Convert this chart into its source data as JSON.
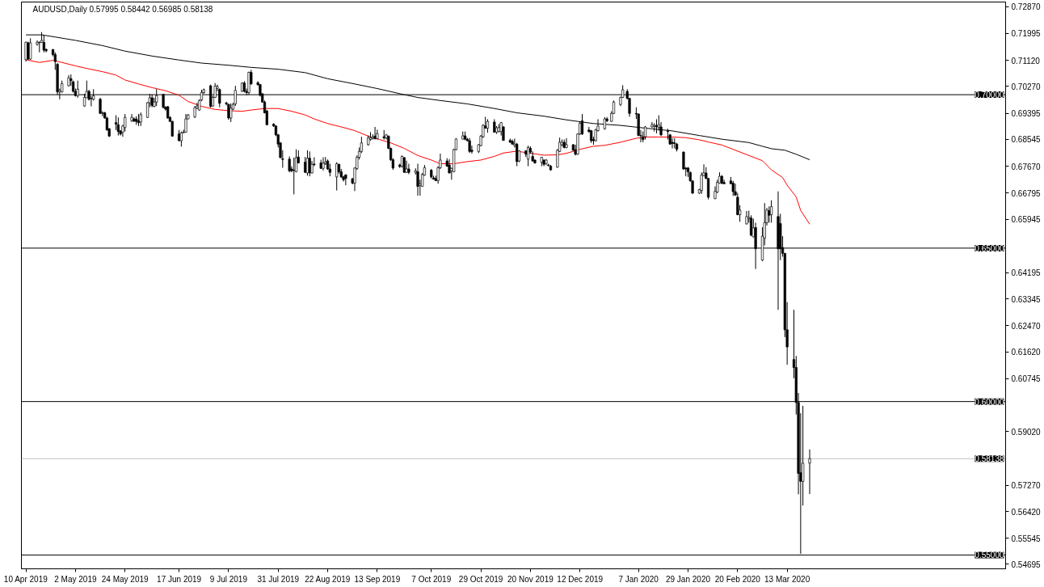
{
  "chart_data": {
    "type": "candlestick",
    "title": "AUDUSD,Daily  0.57995 0.58442 0.56985 0.58138",
    "color": "#000000",
    "x": [
      "2019-04-10",
      "2019-04-11",
      "2019-04-12",
      "2019-04-15",
      "2019-04-16",
      "2019-04-17",
      "2019-04-18",
      "2019-04-19",
      "2019-04-22",
      "2019-04-23",
      "2019-04-24",
      "2019-04-25",
      "2019-04-26",
      "2019-04-29",
      "2019-04-30",
      "2019-05-01",
      "2019-05-02",
      "2019-05-03",
      "2019-05-06",
      "2019-05-07",
      "2019-05-08",
      "2019-05-09",
      "2019-05-10",
      "2019-05-13",
      "2019-05-14",
      "2019-05-15",
      "2019-05-16",
      "2019-05-17",
      "2019-05-20",
      "2019-05-21",
      "2019-05-22",
      "2019-05-23",
      "2019-05-24",
      "2019-05-27",
      "2019-05-28",
      "2019-05-29",
      "2019-05-30",
      "2019-05-31",
      "2019-06-03",
      "2019-06-04",
      "2019-06-05",
      "2019-06-06",
      "2019-06-07",
      "2019-06-10",
      "2019-06-11",
      "2019-06-12",
      "2019-06-13",
      "2019-06-14",
      "2019-06-17",
      "2019-06-18",
      "2019-06-19",
      "2019-06-20",
      "2019-06-21",
      "2019-06-24",
      "2019-06-25",
      "2019-06-26",
      "2019-06-27",
      "2019-06-28",
      "2019-07-01",
      "2019-07-02",
      "2019-07-03",
      "2019-07-04",
      "2019-07-05",
      "2019-07-08",
      "2019-07-09",
      "2019-07-10",
      "2019-07-11",
      "2019-07-12",
      "2019-07-15",
      "2019-07-16",
      "2019-07-17",
      "2019-07-18",
      "2019-07-19",
      "2019-07-22",
      "2019-07-23",
      "2019-07-24",
      "2019-07-25",
      "2019-07-26",
      "2019-07-29",
      "2019-07-30",
      "2019-07-31",
      "2019-08-01",
      "2019-08-02",
      "2019-08-05",
      "2019-08-06",
      "2019-08-07",
      "2019-08-08",
      "2019-08-09",
      "2019-08-12",
      "2019-08-13",
      "2019-08-14",
      "2019-08-15",
      "2019-08-16",
      "2019-08-19",
      "2019-08-20",
      "2019-08-21",
      "2019-08-22",
      "2019-08-23",
      "2019-08-26",
      "2019-08-27",
      "2019-08-28",
      "2019-08-29",
      "2019-08-30",
      "2019-09-02",
      "2019-09-03",
      "2019-09-04",
      "2019-09-05",
      "2019-09-06",
      "2019-09-09",
      "2019-09-10",
      "2019-09-11",
      "2019-09-12",
      "2019-09-13",
      "2019-09-16",
      "2019-09-17",
      "2019-09-18",
      "2019-09-19",
      "2019-09-20",
      "2019-09-23",
      "2019-09-24",
      "2019-09-25",
      "2019-09-26",
      "2019-09-27",
      "2019-09-30",
      "2019-10-01",
      "2019-10-02",
      "2019-10-03",
      "2019-10-04",
      "2019-10-07",
      "2019-10-08",
      "2019-10-09",
      "2019-10-10",
      "2019-10-11",
      "2019-10-14",
      "2019-10-15",
      "2019-10-16",
      "2019-10-17",
      "2019-10-18",
      "2019-10-21",
      "2019-10-22",
      "2019-10-23",
      "2019-10-24",
      "2019-10-25",
      "2019-10-28",
      "2019-10-29",
      "2019-10-30",
      "2019-10-31",
      "2019-11-01",
      "2019-11-04",
      "2019-11-05",
      "2019-11-06",
      "2019-11-07",
      "2019-11-08",
      "2019-11-11",
      "2019-11-12",
      "2019-11-13",
      "2019-11-14",
      "2019-11-15",
      "2019-11-18",
      "2019-11-19",
      "2019-11-20",
      "2019-11-21",
      "2019-11-22",
      "2019-11-25",
      "2019-11-26",
      "2019-11-27",
      "2019-11-28",
      "2019-11-29",
      "2019-12-02",
      "2019-12-03",
      "2019-12-04",
      "2019-12-05",
      "2019-12-06",
      "2019-12-09",
      "2019-12-10",
      "2019-12-11",
      "2019-12-12",
      "2019-12-13",
      "2019-12-16",
      "2019-12-17",
      "2019-12-18",
      "2019-12-19",
      "2019-12-20",
      "2019-12-23",
      "2019-12-24",
      "2019-12-26",
      "2019-12-27",
      "2019-12-30",
      "2019-12-31",
      "2020-01-02",
      "2020-01-03",
      "2020-01-06",
      "2020-01-07",
      "2020-01-08",
      "2020-01-09",
      "2020-01-10",
      "2020-01-13",
      "2020-01-14",
      "2020-01-15",
      "2020-01-16",
      "2020-01-17",
      "2020-01-20",
      "2020-01-21",
      "2020-01-22",
      "2020-01-23",
      "2020-01-24",
      "2020-01-27",
      "2020-01-28",
      "2020-01-29",
      "2020-01-30",
      "2020-01-31",
      "2020-02-03",
      "2020-02-04",
      "2020-02-05",
      "2020-02-06",
      "2020-02-07",
      "2020-02-10",
      "2020-02-11",
      "2020-02-12",
      "2020-02-13",
      "2020-02-14",
      "2020-02-17",
      "2020-02-18",
      "2020-02-19",
      "2020-02-20",
      "2020-02-21",
      "2020-02-24",
      "2020-02-25",
      "2020-02-26",
      "2020-02-27",
      "2020-02-28",
      "2020-03-02",
      "2020-03-03",
      "2020-03-04",
      "2020-03-05",
      "2020-03-06",
      "2020-03-09",
      "2020-03-10",
      "2020-03-11",
      "2020-03-12",
      "2020-03-13",
      "2020-03-16",
      "2020-03-17",
      "2020-03-18",
      "2020-03-19",
      "2020-03-20",
      "2020-03-23"
    ],
    "ohlc": [
      [
        0.7114,
        0.7173,
        0.7108,
        0.7171
      ],
      [
        0.7169,
        0.7173,
        0.7114,
        0.7116
      ],
      [
        0.7116,
        0.7184,
        0.7114,
        0.7169
      ],
      [
        0.7164,
        0.7177,
        0.716,
        0.7171
      ],
      [
        0.7171,
        0.7173,
        0.7138,
        0.717
      ],
      [
        0.717,
        0.7204,
        0.7169,
        0.7177
      ],
      [
        0.717,
        0.7195,
        0.7138,
        0.7145
      ],
      [
        0.7147,
        0.7151,
        0.7138,
        0.7143
      ],
      [
        0.7147,
        0.7149,
        0.7125,
        0.7131
      ],
      [
        0.7131,
        0.7138,
        0.7081,
        0.7108
      ],
      [
        0.7099,
        0.7103,
        0.7,
        0.7009
      ],
      [
        0.7009,
        0.702,
        0.6985,
        0.7014
      ],
      [
        0.7009,
        0.7046,
        0.7007,
        0.7036
      ],
      [
        0.7029,
        0.7064,
        0.7027,
        0.7055
      ],
      [
        0.7052,
        0.7066,
        0.7029,
        0.7046
      ],
      [
        0.7042,
        0.7046,
        0.7007,
        0.7011
      ],
      [
        0.7011,
        0.702,
        0.6994,
        0.6997
      ],
      [
        0.6997,
        0.7046,
        0.699,
        0.7018
      ],
      [
        0.6963,
        0.7003,
        0.6961,
        0.6991
      ],
      [
        0.699,
        0.7046,
        0.699,
        0.7011
      ],
      [
        0.7011,
        0.7016,
        0.6981,
        0.6985
      ],
      [
        0.6988,
        0.6996,
        0.6962,
        0.6987
      ],
      [
        0.6985,
        0.7018,
        0.6981,
        0.6996
      ],
      [
        0.6985,
        0.699,
        0.6937,
        0.6939
      ],
      [
        0.6939,
        0.6946,
        0.693,
        0.6941
      ],
      [
        0.6941,
        0.6944,
        0.6922,
        0.6924
      ],
      [
        0.6924,
        0.6928,
        0.6883,
        0.6885
      ],
      [
        0.6889,
        0.6891,
        0.6862,
        0.6865
      ],
      [
        0.6909,
        0.6933,
        0.6885,
        0.6904
      ],
      [
        0.6902,
        0.6926,
        0.6867,
        0.688
      ],
      [
        0.6882,
        0.6885,
        0.6867,
        0.6872
      ],
      [
        0.6878,
        0.6902,
        0.6863,
        0.6898
      ],
      [
        0.6893,
        0.6937,
        0.688,
        0.6926
      ],
      [
        0.6915,
        0.6937,
        0.6911,
        0.6926
      ],
      [
        0.6921,
        0.6926,
        0.6911,
        0.6914
      ],
      [
        0.6921,
        0.693,
        0.6902,
        0.6913
      ],
      [
        0.6915,
        0.6937,
        0.6898,
        0.6909
      ],
      [
        0.6911,
        0.6942,
        0.6898,
        0.6935
      ],
      [
        0.6926,
        0.6976,
        0.6924,
        0.6974
      ],
      [
        0.6974,
        0.7003,
        0.6959,
        0.699
      ],
      [
        0.699,
        0.7001,
        0.6959,
        0.6965
      ],
      [
        0.6962,
        0.699,
        0.6959,
        0.6976
      ],
      [
        0.6976,
        0.7018,
        0.6963,
        0.6997
      ],
      [
        0.7001,
        0.7003,
        0.6955,
        0.6959
      ],
      [
        0.6959,
        0.6963,
        0.6948,
        0.6953
      ],
      [
        0.6961,
        0.6963,
        0.6922,
        0.6924
      ],
      [
        0.6926,
        0.693,
        0.6911,
        0.6913
      ],
      [
        0.6913,
        0.6915,
        0.6863,
        0.6865
      ],
      [
        0.6872,
        0.6885,
        0.6848,
        0.685
      ],
      [
        0.685,
        0.688,
        0.6831,
        0.6876
      ],
      [
        0.6876,
        0.6886,
        0.6875,
        0.6878
      ],
      [
        0.6878,
        0.6937,
        0.6876,
        0.6921
      ],
      [
        0.6921,
        0.6937,
        0.692,
        0.6934
      ],
      [
        0.6928,
        0.6963,
        0.6924,
        0.6958
      ],
      [
        0.6956,
        0.6974,
        0.6953,
        0.6963
      ],
      [
        0.695,
        0.6985,
        0.6948,
        0.6981
      ],
      [
        0.6983,
        0.7016,
        0.6979,
        0.7007
      ],
      [
        0.7007,
        0.702,
        0.7003,
        0.7016
      ],
      [
        0.7029,
        0.7033,
        0.6958,
        0.6962
      ],
      [
        0.6963,
        0.6996,
        0.6961,
        0.6991
      ],
      [
        0.6991,
        0.7038,
        0.699,
        0.7028
      ],
      [
        0.702,
        0.7033,
        0.7011,
        0.7026
      ],
      [
        0.7017,
        0.702,
        0.6959,
        0.6972
      ],
      [
        0.6973,
        0.6977,
        0.6965,
        0.697
      ],
      [
        0.6968,
        0.6971,
        0.6918,
        0.6924
      ],
      [
        0.6924,
        0.6972,
        0.6911,
        0.6956
      ],
      [
        0.6953,
        0.6974,
        0.695,
        0.6968
      ],
      [
        0.697,
        0.7029,
        0.6963,
        0.7014
      ],
      [
        0.7011,
        0.704,
        0.7009,
        0.7038
      ],
      [
        0.7038,
        0.7044,
        0.7007,
        0.7011
      ],
      [
        0.7011,
        0.702,
        0.6998,
        0.7007
      ],
      [
        0.7007,
        0.7075,
        0.7,
        0.7073
      ],
      [
        0.7073,
        0.7081,
        0.7033,
        0.7035
      ],
      [
        0.7039,
        0.7044,
        0.7029,
        0.7033
      ],
      [
        0.7033,
        0.7035,
        0.6994,
        0.6998
      ],
      [
        0.7003,
        0.7005,
        0.6974,
        0.6976
      ],
      [
        0.6976,
        0.6981,
        0.6939,
        0.6941
      ],
      [
        0.6947,
        0.695,
        0.69,
        0.6902
      ],
      [
        0.6904,
        0.6907,
        0.6895,
        0.6898
      ],
      [
        0.6898,
        0.69,
        0.6865,
        0.6869
      ],
      [
        0.6869,
        0.6872,
        0.6828,
        0.6839
      ],
      [
        0.6843,
        0.6845,
        0.6793,
        0.6795
      ],
      [
        0.6791,
        0.6819,
        0.6762,
        0.6789
      ],
      [
        0.679,
        0.6799,
        0.6747,
        0.6752
      ],
      [
        0.6758,
        0.6767,
        0.6747,
        0.6752
      ],
      [
        0.6754,
        0.6795,
        0.6675,
        0.6753
      ],
      [
        0.6749,
        0.6822,
        0.6747,
        0.6795
      ],
      [
        0.6797,
        0.6819,
        0.6776,
        0.6778
      ],
      [
        0.678,
        0.6797,
        0.6745,
        0.6747
      ],
      [
        0.6745,
        0.6819,
        0.6736,
        0.6793
      ],
      [
        0.6793,
        0.6815,
        0.6734,
        0.6745
      ],
      [
        0.6745,
        0.6784,
        0.6743,
        0.6773
      ],
      [
        0.6774,
        0.6796,
        0.6767,
        0.6772
      ],
      [
        0.6778,
        0.6788,
        0.6758,
        0.676
      ],
      [
        0.676,
        0.6796,
        0.6753,
        0.6777
      ],
      [
        0.6775,
        0.6797,
        0.6771,
        0.678
      ],
      [
        0.6784,
        0.6789,
        0.6755,
        0.6758
      ],
      [
        0.6758,
        0.6775,
        0.6734,
        0.6747
      ],
      [
        0.6732,
        0.678,
        0.6688,
        0.6775
      ],
      [
        0.6773,
        0.6775,
        0.6743,
        0.6749
      ],
      [
        0.6749,
        0.6758,
        0.6729,
        0.6732
      ],
      [
        0.6732,
        0.6736,
        0.6717,
        0.6723
      ],
      [
        0.6739,
        0.674,
        0.6705,
        0.6727
      ],
      [
        0.6726,
        0.6729,
        0.6708,
        0.6712
      ],
      [
        0.6712,
        0.6764,
        0.6686,
        0.6761
      ],
      [
        0.6759,
        0.6802,
        0.6755,
        0.6796
      ],
      [
        0.6796,
        0.6828,
        0.6789,
        0.6815
      ],
      [
        0.6815,
        0.6863,
        0.681,
        0.6843
      ],
      [
        0.6837,
        0.6867,
        0.6834,
        0.686
      ],
      [
        0.6854,
        0.6878,
        0.685,
        0.686
      ],
      [
        0.6857,
        0.6871,
        0.6854,
        0.6861
      ],
      [
        0.6865,
        0.6895,
        0.6854,
        0.6857
      ],
      [
        0.6857,
        0.6886,
        0.6854,
        0.6873
      ],
      [
        0.6863,
        0.6885,
        0.6854,
        0.6859
      ],
      [
        0.6859,
        0.6872,
        0.6854,
        0.6869
      ],
      [
        0.6865,
        0.6867,
        0.6823,
        0.6825
      ],
      [
        0.6825,
        0.6828,
        0.6784,
        0.6788
      ],
      [
        0.6788,
        0.6793,
        0.6755,
        0.6761
      ],
      [
        0.6771,
        0.6775,
        0.6761,
        0.6766
      ],
      [
        0.6767,
        0.6802,
        0.6762,
        0.6799
      ],
      [
        0.6795,
        0.6797,
        0.6745,
        0.6747
      ],
      [
        0.6747,
        0.6785,
        0.6745,
        0.6758
      ],
      [
        0.6758,
        0.6775,
        0.6741,
        0.6747
      ],
      [
        0.6747,
        0.676,
        0.674,
        0.6752
      ],
      [
        0.6749,
        0.6775,
        0.6671,
        0.6701
      ],
      [
        0.6704,
        0.6723,
        0.6671,
        0.6709
      ],
      [
        0.6701,
        0.6745,
        0.6701,
        0.674
      ],
      [
        0.6738,
        0.6771,
        0.6736,
        0.6762
      ],
      [
        0.6754,
        0.6758,
        0.6727,
        0.6732
      ],
      [
        0.6729,
        0.6736,
        0.6723,
        0.6725
      ],
      [
        0.6727,
        0.6736,
        0.6719,
        0.672
      ],
      [
        0.672,
        0.6767,
        0.671,
        0.6762
      ],
      [
        0.6762,
        0.6808,
        0.6758,
        0.6787
      ],
      [
        0.6784,
        0.6793,
        0.6765,
        0.6767
      ],
      [
        0.6771,
        0.679,
        0.6743,
        0.6745
      ],
      [
        0.6752,
        0.6762,
        0.6723,
        0.676
      ],
      [
        0.6749,
        0.6824,
        0.6747,
        0.6821
      ],
      [
        0.6821,
        0.6858,
        0.6819,
        0.6856
      ],
      [
        0.6855,
        0.688,
        0.6855,
        0.6866
      ],
      [
        0.6866,
        0.688,
        0.6852,
        0.6855
      ],
      [
        0.6855,
        0.6859,
        0.6848,
        0.685
      ],
      [
        0.685,
        0.6859,
        0.681,
        0.6815
      ],
      [
        0.6819,
        0.6834,
        0.6808,
        0.6815
      ],
      [
        0.6815,
        0.6839,
        0.681,
        0.6837
      ],
      [
        0.6834,
        0.6869,
        0.6832,
        0.6865
      ],
      [
        0.6863,
        0.6904,
        0.6859,
        0.69
      ],
      [
        0.6898,
        0.6928,
        0.6889,
        0.6891
      ],
      [
        0.6891,
        0.692,
        0.6876,
        0.6913
      ],
      [
        0.6911,
        0.692,
        0.6876,
        0.6878
      ],
      [
        0.6878,
        0.6898,
        0.6872,
        0.6892
      ],
      [
        0.688,
        0.6904,
        0.6877,
        0.6893
      ],
      [
        0.688,
        0.6911,
        0.6867,
        0.6909
      ],
      [
        0.6895,
        0.6898,
        0.685,
        0.6851
      ],
      [
        0.6851,
        0.6857,
        0.6843,
        0.6845
      ],
      [
        0.6848,
        0.6854,
        0.6837,
        0.6839
      ],
      [
        0.6834,
        0.6857,
        0.6828,
        0.6839
      ],
      [
        0.6839,
        0.6843,
        0.6767,
        0.6782
      ],
      [
        0.6784,
        0.6819,
        0.678,
        0.6817
      ],
      [
        0.6817,
        0.6819,
        0.6797,
        0.6806
      ],
      [
        0.679,
        0.6834,
        0.6767,
        0.6828
      ],
      [
        0.6825,
        0.6832,
        0.6808,
        0.6813
      ],
      [
        0.6799,
        0.6815,
        0.6782,
        0.6784
      ],
      [
        0.6787,
        0.6789,
        0.6775,
        0.6778
      ],
      [
        0.678,
        0.6797,
        0.6767,
        0.6796
      ],
      [
        0.6787,
        0.6789,
        0.6767,
        0.6773
      ],
      [
        0.6776,
        0.679,
        0.6771,
        0.6787
      ],
      [
        0.6771,
        0.6775,
        0.6767,
        0.6769
      ],
      [
        0.6767,
        0.6771,
        0.6752,
        0.6755
      ],
      [
        0.6764,
        0.6823,
        0.6762,
        0.6819
      ],
      [
        0.6815,
        0.686,
        0.6813,
        0.6845
      ],
      [
        0.6837,
        0.6854,
        0.6832,
        0.6845
      ],
      [
        0.6845,
        0.6854,
        0.6825,
        0.6828
      ],
      [
        0.6828,
        0.6858,
        0.6825,
        0.6837
      ],
      [
        0.6837,
        0.6839,
        0.6817,
        0.6819
      ],
      [
        0.6821,
        0.6837,
        0.6802,
        0.6806
      ],
      [
        0.6806,
        0.6874,
        0.6804,
        0.6872
      ],
      [
        0.6872,
        0.6911,
        0.6869,
        0.6907
      ],
      [
        0.6915,
        0.6937,
        0.6869,
        0.6872
      ],
      [
        0.6885,
        0.6895,
        0.6876,
        0.688
      ],
      [
        0.6883,
        0.6885,
        0.6843,
        0.685
      ],
      [
        0.6854,
        0.6863,
        0.6837,
        0.685
      ],
      [
        0.685,
        0.6889,
        0.6848,
        0.6885
      ],
      [
        0.6883,
        0.692,
        0.688,
        0.6898
      ],
      [
        0.6889,
        0.6927,
        0.6886,
        0.6921
      ],
      [
        0.6921,
        0.6927,
        0.6911,
        0.6915
      ],
      [
        0.6913,
        0.6946,
        0.6911,
        0.6939
      ],
      [
        0.6939,
        0.6981,
        0.6937,
        0.6976
      ],
      [
        0.6968,
        0.6994,
        0.6963,
        0.6991
      ],
      [
        0.6991,
        0.7031,
        0.699,
        0.7016
      ],
      [
        0.7011,
        0.7018,
        0.6985,
        0.6988
      ],
      [
        0.6988,
        0.699,
        0.6928,
        0.6939
      ],
      [
        0.6939,
        0.6959,
        0.6921,
        0.6937
      ],
      [
        0.6937,
        0.6939,
        0.6865,
        0.6867
      ],
      [
        0.6867,
        0.6885,
        0.6845,
        0.6866
      ],
      [
        0.6863,
        0.688,
        0.6845,
        0.6854
      ],
      [
        0.6863,
        0.6898,
        0.6854,
        0.6895
      ],
      [
        0.6895,
        0.6911,
        0.6892,
        0.6902
      ],
      [
        0.6896,
        0.6907,
        0.688,
        0.69
      ],
      [
        0.69,
        0.692,
        0.6874,
        0.6895
      ],
      [
        0.6894,
        0.6933,
        0.6883,
        0.6902
      ],
      [
        0.6895,
        0.6911,
        0.6865,
        0.6869
      ],
      [
        0.6881,
        0.6889,
        0.6854,
        0.688
      ],
      [
        0.6869,
        0.6872,
        0.6837,
        0.6839
      ],
      [
        0.6845,
        0.6858,
        0.6825,
        0.6841
      ],
      [
        0.6843,
        0.6858,
        0.6825,
        0.6841
      ],
      [
        0.6839,
        0.6843,
        0.6815,
        0.6822
      ],
      [
        0.6813,
        0.6815,
        0.6755,
        0.6758
      ],
      [
        0.6761,
        0.6764,
        0.6734,
        0.6758
      ],
      [
        0.6761,
        0.6764,
        0.6732,
        0.6749
      ],
      [
        0.6747,
        0.6749,
        0.6717,
        0.6719
      ],
      [
        0.6719,
        0.672,
        0.6677,
        0.6679
      ],
      [
        0.6679,
        0.6693,
        0.6677,
        0.6691
      ],
      [
        0.6688,
        0.6747,
        0.6677,
        0.6738
      ],
      [
        0.6736,
        0.6773,
        0.6734,
        0.6745
      ],
      [
        0.6745,
        0.6764,
        0.6725,
        0.6727
      ],
      [
        0.6727,
        0.6729,
        0.6659,
        0.6666
      ],
      [
        0.6662,
        0.6701,
        0.6659,
        0.6685
      ],
      [
        0.6683,
        0.6723,
        0.6679,
        0.6714
      ],
      [
        0.6712,
        0.6747,
        0.671,
        0.6734
      ],
      [
        0.6734,
        0.6738,
        0.6708,
        0.6712
      ],
      [
        0.6714,
        0.6723,
        0.6708,
        0.671
      ],
      [
        0.6719,
        0.6732,
        0.6708,
        0.671
      ],
      [
        0.6712,
        0.6719,
        0.667,
        0.6684
      ],
      [
        0.6684,
        0.671,
        0.667,
        0.6673
      ],
      [
        0.6666,
        0.668,
        0.6607,
        0.6609
      ],
      [
        0.6609,
        0.664,
        0.6586,
        0.6624
      ],
      [
        0.6579,
        0.6621,
        0.6577,
        0.6603
      ],
      [
        0.6596,
        0.6622,
        0.6583,
        0.66
      ],
      [
        0.6598,
        0.6607,
        0.6539,
        0.6542
      ],
      [
        0.6537,
        0.6596,
        0.6535,
        0.6566
      ],
      [
        0.6567,
        0.6583,
        0.6432,
        0.6498
      ],
      [
        0.6461,
        0.6568,
        0.6458,
        0.6539
      ],
      [
        0.6533,
        0.6647,
        0.6509,
        0.6583
      ],
      [
        0.6583,
        0.6631,
        0.6574,
        0.6624
      ],
      [
        0.6622,
        0.6636,
        0.6583,
        0.6607
      ],
      [
        0.6609,
        0.6656,
        0.6583,
        0.6635
      ],
      [
        0.6603,
        0.6685,
        0.6299,
        0.6498
      ],
      [
        0.658,
        0.6612,
        0.6461,
        0.6498
      ],
      [
        0.6502,
        0.6539,
        0.6472,
        0.6483
      ],
      [
        0.6483,
        0.6484,
        0.621,
        0.6234
      ],
      [
        0.6234,
        0.6324,
        0.612,
        0.6178
      ],
      [
        0.6137,
        0.6299,
        0.6076,
        0.6111
      ],
      [
        0.6111,
        0.6149,
        0.5958,
        0.5997
      ],
      [
        0.5997,
        0.6028,
        0.5698,
        0.5766
      ],
      [
        0.5768,
        0.5962,
        0.5504,
        0.574
      ],
      [
        0.574,
        0.5986,
        0.5661,
        0.5799
      ],
      [
        0.57995,
        0.58442,
        0.56985,
        0.58138
      ]
    ],
    "series": [
      {
        "type": "line",
        "color": "#ff0000",
        "x": [
          "2019-04-10",
          "2019-04-16",
          "2019-04-22",
          "2019-04-26",
          "2019-05-02",
          "2019-05-08",
          "2019-05-14",
          "2019-05-20",
          "2019-05-24",
          "2019-05-30",
          "2019-06-05",
          "2019-06-11",
          "2019-06-17",
          "2019-06-21",
          "2019-06-27",
          "2019-07-03",
          "2019-07-09",
          "2019-07-15",
          "2019-07-19",
          "2019-07-25",
          "2019-07-31",
          "2019-08-06",
          "2019-08-12",
          "2019-08-16",
          "2019-08-22",
          "2019-08-28",
          "2019-09-03",
          "2019-09-09",
          "2019-09-13",
          "2019-09-19",
          "2019-09-25",
          "2019-10-01",
          "2019-10-07",
          "2019-10-11",
          "2019-10-17",
          "2019-10-23",
          "2019-10-29",
          "2019-11-04",
          "2019-11-08",
          "2019-11-14",
          "2019-11-20",
          "2019-11-26",
          "2019-12-02",
          "2019-12-06",
          "2019-12-12",
          "2019-12-18",
          "2019-12-23",
          "2019-12-30",
          "2020-01-06",
          "2020-01-10",
          "2020-01-16",
          "2020-01-22",
          "2020-01-28",
          "2020-02-03",
          "2020-02-07",
          "2020-02-13",
          "2020-02-19",
          "2020-02-25",
          "2020-03-02",
          "2020-03-06",
          "2020-03-11",
          "2020-03-13",
          "2020-03-17",
          "2020-03-19",
          "2020-03-23"
        ],
        "values": [
          0.7114,
          0.7105,
          0.7112,
          0.7105,
          0.7094,
          0.7084,
          0.7075,
          0.7064,
          0.7048,
          0.7035,
          0.7023,
          0.7013,
          0.6998,
          0.6978,
          0.6962,
          0.6952,
          0.6948,
          0.6946,
          0.695,
          0.6955,
          0.6955,
          0.6946,
          0.6934,
          0.6921,
          0.6906,
          0.6895,
          0.6883,
          0.6865,
          0.6856,
          0.6843,
          0.6825,
          0.6802,
          0.6787,
          0.6775,
          0.6775,
          0.6782,
          0.6787,
          0.6799,
          0.681,
          0.6816,
          0.6809,
          0.6803,
          0.6804,
          0.6809,
          0.6822,
          0.6832,
          0.6835,
          0.6845,
          0.6858,
          0.6862,
          0.6862,
          0.6862,
          0.686,
          0.6853,
          0.6846,
          0.6836,
          0.6819,
          0.6802,
          0.6785,
          0.6755,
          0.673,
          0.6705,
          0.6667,
          0.6623,
          0.6578
        ]
      },
      {
        "type": "line",
        "color": "#000000",
        "x": [
          "2019-04-10",
          "2019-04-17",
          "2019-04-23",
          "2019-05-02",
          "2019-05-14",
          "2019-05-24",
          "2019-06-05",
          "2019-06-17",
          "2019-06-27",
          "2019-07-09",
          "2019-07-19",
          "2019-07-31",
          "2019-08-12",
          "2019-08-22",
          "2019-09-03",
          "2019-09-13",
          "2019-09-25",
          "2019-10-01",
          "2019-10-11",
          "2019-10-23",
          "2019-11-04",
          "2019-11-14",
          "2019-11-26",
          "2019-12-06",
          "2019-12-18",
          "2019-12-30",
          "2020-01-10",
          "2020-01-22",
          "2020-02-03",
          "2020-02-13",
          "2020-02-25",
          "2020-03-02",
          "2020-03-06",
          "2020-03-12",
          "2020-03-17",
          "2020-03-23"
        ],
        "values": [
          0.7195,
          0.7195,
          0.7188,
          0.7177,
          0.716,
          0.7142,
          0.7126,
          0.7113,
          0.7103,
          0.7096,
          0.7089,
          0.7083,
          0.7072,
          0.7052,
          0.7035,
          0.702,
          0.7,
          0.6991,
          0.6981,
          0.697,
          0.6955,
          0.6941,
          0.693,
          0.6918,
          0.6906,
          0.69,
          0.6891,
          0.6882,
          0.6867,
          0.6855,
          0.6844,
          0.6832,
          0.6824,
          0.6819,
          0.6806,
          0.6788
        ]
      }
    ],
    "xlim": [
      "2019-04-08",
      "2020-06-18"
    ],
    "ylim": [
      0.5455,
      0.7302
    ],
    "xticks": [
      {
        "value": "2019-04-10",
        "label": "10 Apr 2019"
      },
      {
        "value": "2019-05-02",
        "label": "2 May 2019"
      },
      {
        "value": "2019-05-24",
        "label": "24 May 2019"
      },
      {
        "value": "2019-06-17",
        "label": "17 Jun 2019"
      },
      {
        "value": "2019-07-09",
        "label": "9 Jul 2019"
      },
      {
        "value": "2019-07-31",
        "label": "31 Jul 2019"
      },
      {
        "value": "2019-08-22",
        "label": "22 Aug 2019"
      },
      {
        "value": "2019-09-13",
        "label": "13 Sep 2019"
      },
      {
        "value": "2019-10-07",
        "label": "7 Oct 2019"
      },
      {
        "value": "2019-10-29",
        "label": "29 Oct 2019"
      },
      {
        "value": "2019-11-20",
        "label": "20 Nov 2019"
      },
      {
        "value": "2019-12-12",
        "label": "12 Dec 2019"
      },
      {
        "value": "2020-01-07",
        "label": "7 Jan 2020"
      },
      {
        "value": "2020-01-29",
        "label": "29 Jan 2020"
      },
      {
        "value": "2020-02-20",
        "label": "20 Feb 2020"
      },
      {
        "value": "2020-03-13",
        "label": "13 Mar 2020"
      }
    ],
    "yticks": [
      {
        "value": 0.7287,
        "label": "0.72870"
      },
      {
        "value": 0.71995,
        "label": "0.71995"
      },
      {
        "value": 0.7112,
        "label": "0.71120"
      },
      {
        "value": 0.7027,
        "label": "0.70270"
      },
      {
        "value": 0.69395,
        "label": "0.69395"
      },
      {
        "value": 0.68545,
        "label": "0.68545"
      },
      {
        "value": 0.6767,
        "label": "0.67670"
      },
      {
        "value": 0.66795,
        "label": "0.66795"
      },
      {
        "value": 0.65945,
        "label": "0.65945"
      },
      {
        "value": 0.64195,
        "label": "0.64195"
      },
      {
        "value": 0.63345,
        "label": "0.63345"
      },
      {
        "value": 0.6247,
        "label": "0.62470"
      },
      {
        "value": 0.6162,
        "label": "0.61620"
      },
      {
        "value": 0.60745,
        "label": "0.60745"
      },
      {
        "value": 0.5902,
        "label": "0.59020"
      },
      {
        "value": 0.5727,
        "label": "0.57270"
      },
      {
        "value": 0.5642,
        "label": "0.56420"
      },
      {
        "value": 0.55545,
        "label": "0.55545"
      },
      {
        "value": 0.54695,
        "label": "0.54695"
      }
    ],
    "ref_lines": [
      {
        "axis": "y",
        "value": 0.7,
        "label": "0.70000",
        "color": "#000000"
      },
      {
        "axis": "y",
        "value": 0.65,
        "label": "0.65000",
        "color": "#000000"
      },
      {
        "axis": "y",
        "value": 0.6,
        "label": "0.60000",
        "color": "#000000"
      },
      {
        "axis": "y",
        "value": 0.58138,
        "label": "0.58138",
        "color": "#c0c0c0"
      },
      {
        "axis": "y",
        "value": 0.55,
        "label": "0.55000",
        "color": "#000000"
      }
    ]
  }
}
